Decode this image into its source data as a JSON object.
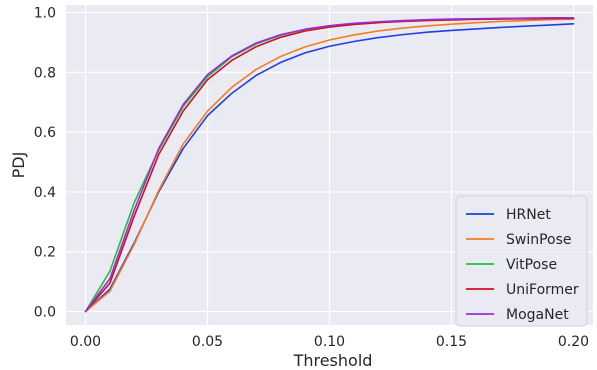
{
  "chart_data": {
    "type": "line",
    "title": "",
    "xlabel": "Threshold",
    "ylabel": "PDJ",
    "xlim": [
      -0.008,
      0.208
    ],
    "ylim": [
      -0.045,
      1.025
    ],
    "xticks": [
      0.0,
      0.05,
      0.1,
      0.15,
      0.2
    ],
    "xtick_labels": [
      "0.00",
      "0.05",
      "0.10",
      "0.15",
      "0.20"
    ],
    "yticks": [
      0.0,
      0.2,
      0.4,
      0.6,
      0.8,
      1.0
    ],
    "ytick_labels": [
      "0.0",
      "0.2",
      "0.4",
      "0.6",
      "0.8",
      "1.0"
    ],
    "grid": true,
    "background": "#eaeaf2",
    "legend_position": "bottom-right",
    "x": [
      0.0,
      0.01,
      0.02,
      0.03,
      0.04,
      0.05,
      0.06,
      0.07,
      0.08,
      0.09,
      0.1,
      0.11,
      0.12,
      0.13,
      0.14,
      0.15,
      0.16,
      0.17,
      0.18,
      0.19,
      0.2
    ],
    "series": [
      {
        "name": "HRNet",
        "color": "#1f3fe0",
        "values": [
          0.0,
          0.075,
          0.23,
          0.4,
          0.545,
          0.655,
          0.73,
          0.79,
          0.833,
          0.865,
          0.887,
          0.903,
          0.916,
          0.926,
          0.934,
          0.94,
          0.945,
          0.95,
          0.954,
          0.958,
          0.962
        ]
      },
      {
        "name": "SwinPose",
        "color": "#f47c20",
        "values": [
          0.0,
          0.068,
          0.225,
          0.405,
          0.56,
          0.67,
          0.75,
          0.81,
          0.853,
          0.885,
          0.908,
          0.925,
          0.938,
          0.948,
          0.955,
          0.961,
          0.966,
          0.97,
          0.973,
          0.976,
          0.978
        ]
      },
      {
        "name": "VitPose",
        "color": "#22c040",
        "values": [
          0.0,
          0.135,
          0.365,
          0.54,
          0.685,
          0.785,
          0.852,
          0.895,
          0.924,
          0.943,
          0.955,
          0.963,
          0.968,
          0.972,
          0.975,
          0.977,
          0.978,
          0.979,
          0.98,
          0.98,
          0.98
        ]
      },
      {
        "name": "UniFormer",
        "color": "#d0101e",
        "values": [
          0.0,
          0.095,
          0.32,
          0.525,
          0.67,
          0.775,
          0.84,
          0.886,
          0.917,
          0.938,
          0.951,
          0.96,
          0.966,
          0.97,
          0.973,
          0.975,
          0.977,
          0.978,
          0.979,
          0.98,
          0.98
        ]
      },
      {
        "name": "MogaNet",
        "color": "#9b2bd6",
        "values": [
          0.0,
          0.11,
          0.34,
          0.545,
          0.692,
          0.792,
          0.855,
          0.898,
          0.926,
          0.944,
          0.956,
          0.964,
          0.969,
          0.973,
          0.976,
          0.978,
          0.979,
          0.98,
          0.981,
          0.982,
          0.982
        ]
      }
    ]
  }
}
